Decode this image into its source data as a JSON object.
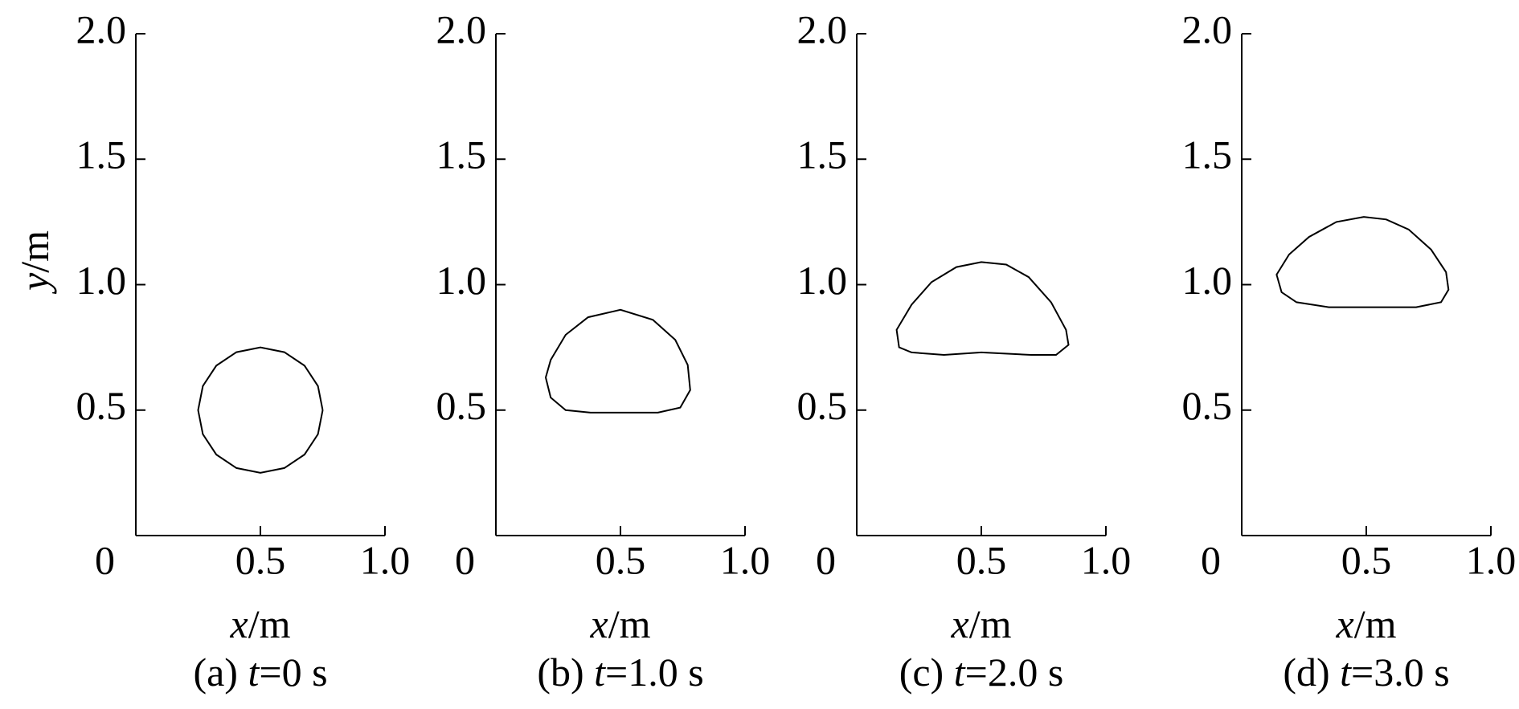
{
  "chart_data": [
    {
      "type": "line",
      "title": "(a) t=0 s",
      "xlabel": "x/m",
      "ylabel": "y/m",
      "color": "#000000",
      "xlim": [
        0,
        1
      ],
      "ylim": [
        0,
        2
      ],
      "xticks": [
        0,
        0.5,
        {
          "value": 1,
          "label": "1.0"
        }
      ],
      "yticks": [
        0.5,
        {
          "value": 1,
          "label": "1.0"
        },
        1.5,
        {
          "value": 2,
          "label": "2.0"
        }
      ],
      "x": [
        0.75,
        0.731,
        0.677,
        0.596,
        0.5,
        0.404,
        0.323,
        0.269,
        0.25,
        0.269,
        0.323,
        0.404,
        0.5,
        0.596,
        0.677,
        0.731,
        0.75
      ],
      "values": [
        0.5,
        0.596,
        0.677,
        0.731,
        0.75,
        0.731,
        0.677,
        0.596,
        0.5,
        0.404,
        0.323,
        0.269,
        0.25,
        0.269,
        0.323,
        0.404,
        0.5
      ]
    },
    {
      "type": "line",
      "title": "(b) t=1.0 s",
      "xlabel": "x/m",
      "color": "#000000",
      "xlim": [
        0,
        1
      ],
      "ylim": [
        0,
        2
      ],
      "xticks": [
        0,
        0.5,
        {
          "value": 1,
          "label": "1.0"
        }
      ],
      "yticks": [
        0.5,
        {
          "value": 1,
          "label": "1.0"
        },
        1.5,
        {
          "value": 2,
          "label": "2.0"
        }
      ],
      "x": [
        0.5,
        0.65,
        0.74,
        0.78,
        0.77,
        0.72,
        0.63,
        0.5,
        0.37,
        0.28,
        0.22,
        0.2,
        0.22,
        0.28,
        0.38,
        0.5
      ],
      "values": [
        0.49,
        0.49,
        0.51,
        0.58,
        0.68,
        0.78,
        0.86,
        0.9,
        0.87,
        0.8,
        0.7,
        0.63,
        0.55,
        0.5,
        0.49,
        0.49
      ]
    },
    {
      "type": "line",
      "title": "(c) t=2.0 s",
      "xlabel": "x/m",
      "color": "#000000",
      "xlim": [
        0,
        1
      ],
      "ylim": [
        0,
        2
      ],
      "xticks": [
        0,
        0.5,
        {
          "value": 1,
          "label": "1.0"
        }
      ],
      "yticks": [
        0.5,
        {
          "value": 1,
          "label": "1.0"
        },
        1.5,
        {
          "value": 2,
          "label": "2.0"
        }
      ],
      "x": [
        0.5,
        0.7,
        0.8,
        0.85,
        0.84,
        0.78,
        0.69,
        0.6,
        0.5,
        0.4,
        0.3,
        0.22,
        0.16,
        0.17,
        0.22,
        0.35,
        0.5
      ],
      "values": [
        0.73,
        0.72,
        0.72,
        0.76,
        0.82,
        0.93,
        1.03,
        1.08,
        1.09,
        1.07,
        1.01,
        0.92,
        0.82,
        0.75,
        0.73,
        0.72,
        0.73
      ]
    },
    {
      "type": "line",
      "title": "(d) t=3.0 s",
      "xlabel": "x/m",
      "color": "#000000",
      "xlim": [
        0,
        1
      ],
      "ylim": [
        0,
        2
      ],
      "xticks": [
        0,
        0.5,
        {
          "value": 1,
          "label": "1.0"
        }
      ],
      "yticks": [
        0.5,
        {
          "value": 1,
          "label": "1.0"
        },
        1.5,
        {
          "value": 2,
          "label": "2.0"
        }
      ],
      "x": [
        0.5,
        0.7,
        0.8,
        0.83,
        0.82,
        0.76,
        0.67,
        0.58,
        0.49,
        0.38,
        0.27,
        0.19,
        0.14,
        0.16,
        0.22,
        0.35,
        0.5
      ],
      "values": [
        0.91,
        0.91,
        0.93,
        0.98,
        1.05,
        1.14,
        1.22,
        1.26,
        1.27,
        1.25,
        1.19,
        1.12,
        1.04,
        0.97,
        0.93,
        0.91,
        0.91
      ]
    }
  ]
}
